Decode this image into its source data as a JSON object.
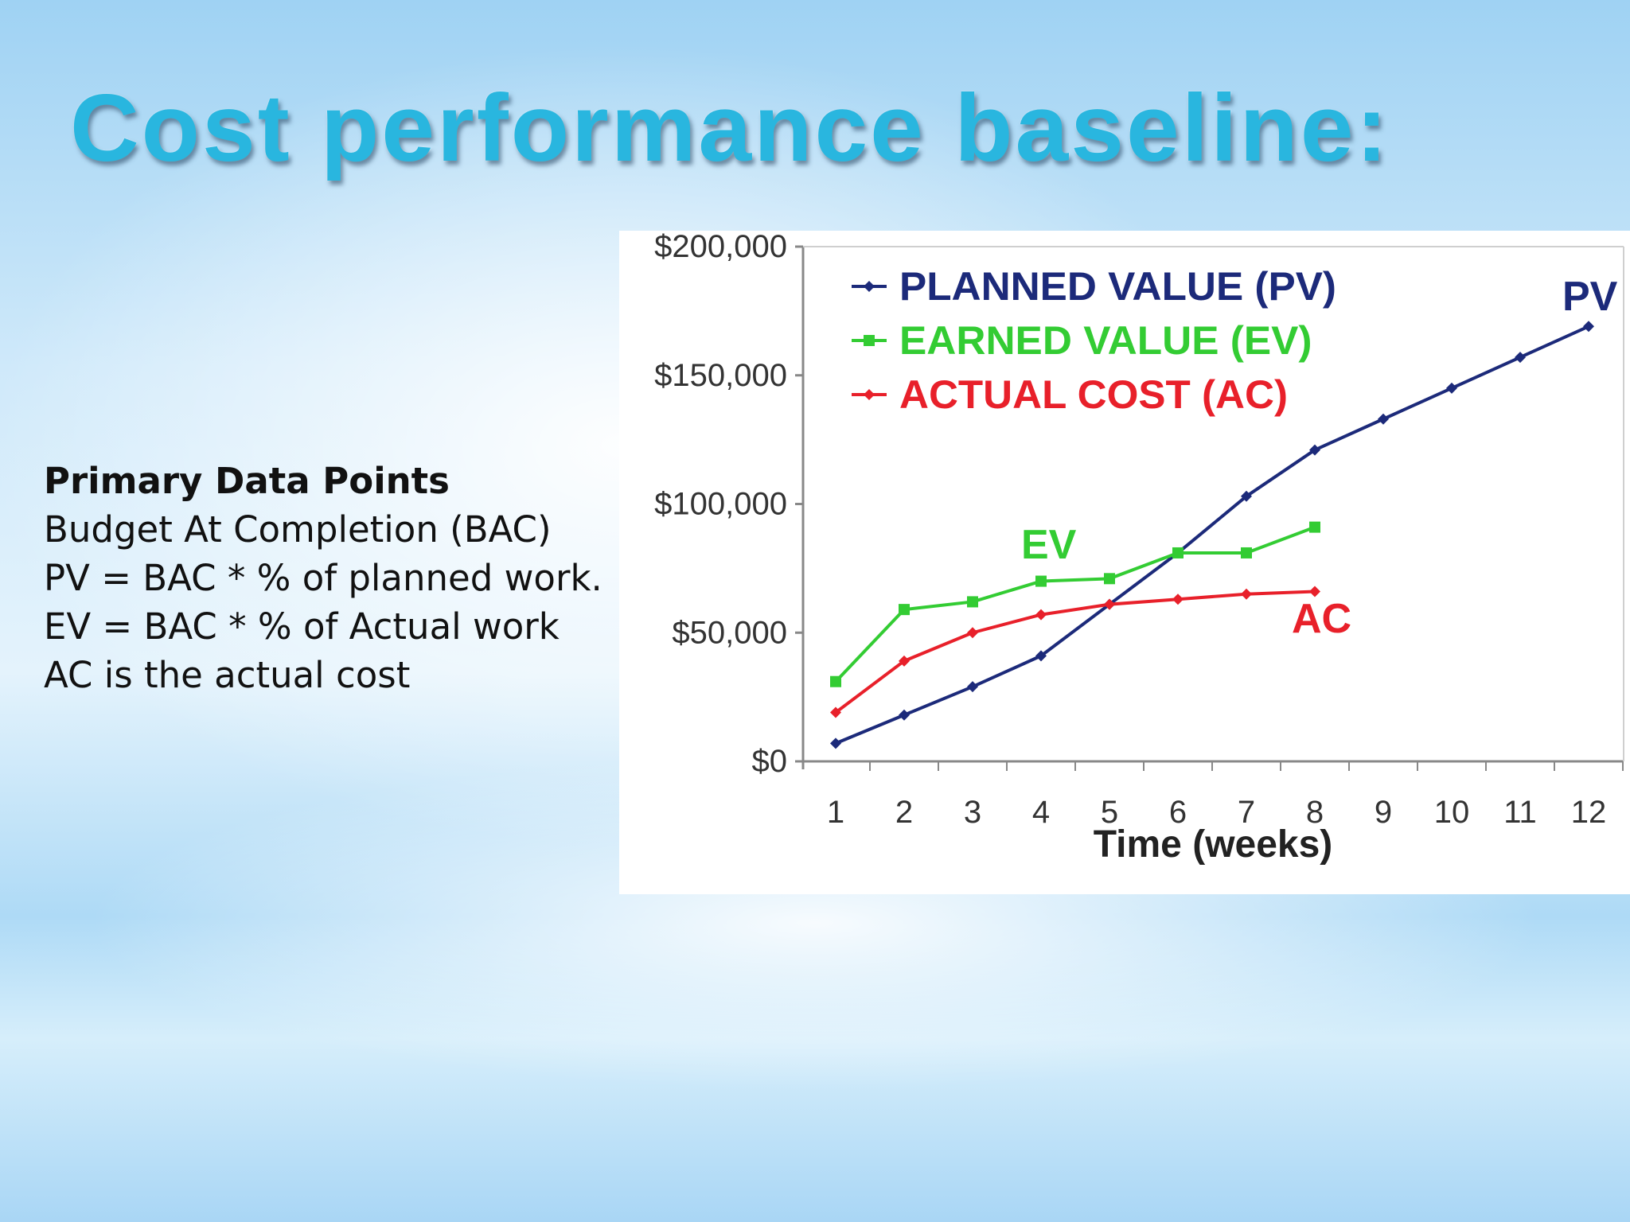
{
  "slide": {
    "title": "Cost performance baseline:"
  },
  "notes": {
    "heading": "Primary Data Points",
    "lines": [
      "Budget At Completion (BAC)",
      "PV = BAC * % of planned work.",
      "EV = BAC * % of Actual work",
      "AC is the actual cost"
    ]
  },
  "chart_data": {
    "type": "line",
    "xlabel": "Time (weeks)",
    "ylabel": "",
    "x": [
      1,
      2,
      3,
      4,
      5,
      6,
      7,
      8,
      9,
      10,
      11,
      12
    ],
    "ylim": [
      0,
      200000
    ],
    "yticks": [
      0,
      50000,
      100000,
      150000,
      200000
    ],
    "ytick_labels": [
      "$0",
      "$50,000",
      "$100,000",
      "$150,000",
      "$200,000"
    ],
    "grid": false,
    "legend_position": "top-left",
    "series": [
      {
        "name": "PLANNED VALUE (PV)",
        "label": "PV",
        "color": "#1c2a7a",
        "marker": "diamond",
        "x": [
          1,
          2,
          3,
          4,
          5,
          6,
          7,
          8,
          9,
          10,
          11,
          12
        ],
        "values": [
          7000,
          18000,
          29000,
          41000,
          61000,
          81000,
          103000,
          121000,
          133000,
          145000,
          157000,
          169000
        ]
      },
      {
        "name": "EARNED VALUE (EV)",
        "label": "EV",
        "color": "#33cc33",
        "marker": "square",
        "x": [
          1,
          2,
          3,
          4,
          5,
          6,
          7,
          8
        ],
        "values": [
          31000,
          59000,
          62000,
          70000,
          71000,
          81000,
          81000,
          91000
        ]
      },
      {
        "name": "ACTUAL COST (AC)",
        "label": "AC",
        "color": "#e8202a",
        "marker": "diamond",
        "x": [
          1,
          2,
          3,
          4,
          5,
          6,
          7,
          8
        ],
        "values": [
          19000,
          39000,
          50000,
          57000,
          61000,
          63000,
          65000,
          66000
        ]
      }
    ]
  }
}
